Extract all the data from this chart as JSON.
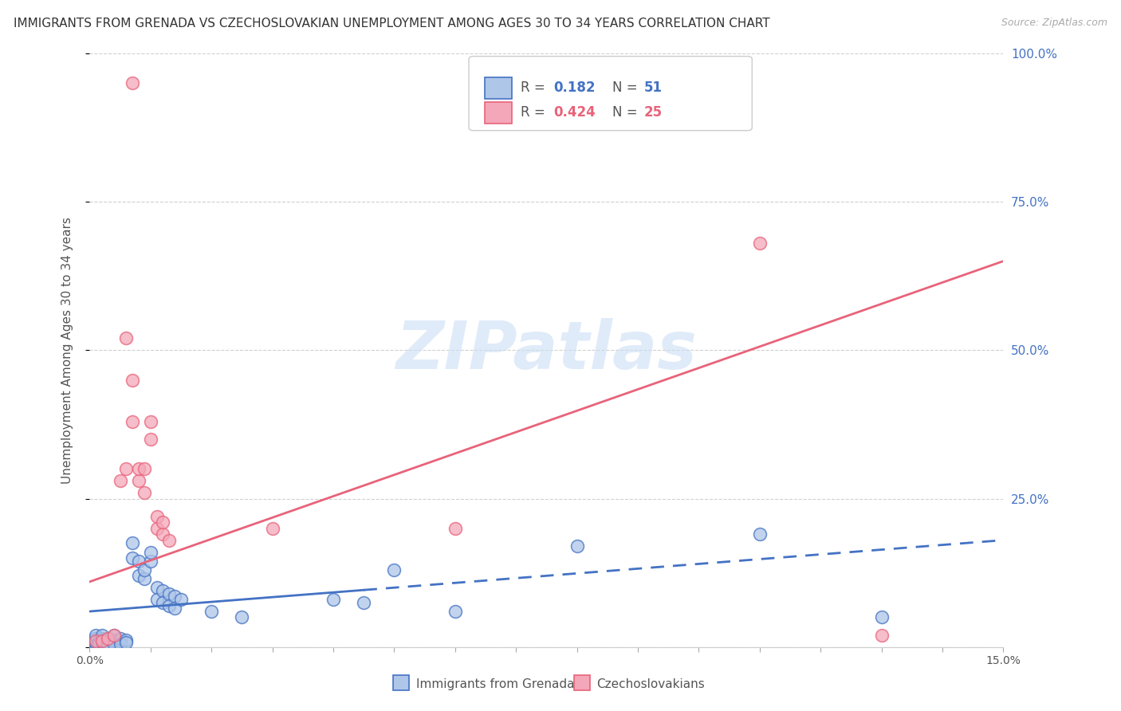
{
  "title": "IMMIGRANTS FROM GRENADA VS CZECHOSLOVAKIAN UNEMPLOYMENT AMONG AGES 30 TO 34 YEARS CORRELATION CHART",
  "source": "Source: ZipAtlas.com",
  "ylabel": "Unemployment Among Ages 30 to 34 years",
  "xmin": 0.0,
  "xmax": 0.15,
  "ymin": 0.0,
  "ymax": 1.0,
  "grenada_R": 0.182,
  "grenada_N": 51,
  "czech_R": 0.424,
  "czech_N": 25,
  "grenada_color": "#aec6e8",
  "czech_color": "#f4a7b9",
  "grenada_line_color": "#4472c4",
  "czech_line_color": "#e8637a",
  "grenada_points": [
    [
      0.0005,
      0.005
    ],
    [
      0.0005,
      0.01
    ],
    [
      0.0008,
      0.015
    ],
    [
      0.001,
      0.005
    ],
    [
      0.001,
      0.01
    ],
    [
      0.001,
      0.02
    ],
    [
      0.0012,
      0.005
    ],
    [
      0.0015,
      0.01
    ],
    [
      0.0015,
      0.005
    ],
    [
      0.002,
      0.008
    ],
    [
      0.002,
      0.015
    ],
    [
      0.002,
      0.02
    ],
    [
      0.0022,
      0.01
    ],
    [
      0.003,
      0.012
    ],
    [
      0.003,
      0.008
    ],
    [
      0.003,
      0.005
    ],
    [
      0.0032,
      0.015
    ],
    [
      0.004,
      0.01
    ],
    [
      0.004,
      0.005
    ],
    [
      0.004,
      0.02
    ],
    [
      0.005,
      0.01
    ],
    [
      0.005,
      0.015
    ],
    [
      0.005,
      0.005
    ],
    [
      0.006,
      0.012
    ],
    [
      0.006,
      0.008
    ],
    [
      0.007,
      0.15
    ],
    [
      0.007,
      0.175
    ],
    [
      0.008,
      0.12
    ],
    [
      0.008,
      0.145
    ],
    [
      0.009,
      0.115
    ],
    [
      0.009,
      0.13
    ],
    [
      0.01,
      0.145
    ],
    [
      0.01,
      0.16
    ],
    [
      0.011,
      0.1
    ],
    [
      0.011,
      0.08
    ],
    [
      0.012,
      0.095
    ],
    [
      0.012,
      0.075
    ],
    [
      0.013,
      0.09
    ],
    [
      0.013,
      0.07
    ],
    [
      0.014,
      0.085
    ],
    [
      0.014,
      0.065
    ],
    [
      0.015,
      0.08
    ],
    [
      0.02,
      0.06
    ],
    [
      0.025,
      0.05
    ],
    [
      0.04,
      0.08
    ],
    [
      0.045,
      0.075
    ],
    [
      0.05,
      0.13
    ],
    [
      0.06,
      0.06
    ],
    [
      0.08,
      0.17
    ],
    [
      0.11,
      0.19
    ],
    [
      0.13,
      0.05
    ]
  ],
  "czech_points": [
    [
      0.001,
      0.01
    ],
    [
      0.002,
      0.01
    ],
    [
      0.003,
      0.015
    ],
    [
      0.004,
      0.02
    ],
    [
      0.005,
      0.28
    ],
    [
      0.006,
      0.3
    ],
    [
      0.006,
      0.52
    ],
    [
      0.007,
      0.45
    ],
    [
      0.007,
      0.38
    ],
    [
      0.008,
      0.28
    ],
    [
      0.008,
      0.3
    ],
    [
      0.009,
      0.3
    ],
    [
      0.009,
      0.26
    ],
    [
      0.01,
      0.38
    ],
    [
      0.01,
      0.35
    ],
    [
      0.011,
      0.2
    ],
    [
      0.011,
      0.22
    ],
    [
      0.012,
      0.19
    ],
    [
      0.012,
      0.21
    ],
    [
      0.013,
      0.18
    ],
    [
      0.03,
      0.2
    ],
    [
      0.06,
      0.2
    ],
    [
      0.11,
      0.68
    ],
    [
      0.13,
      0.02
    ],
    [
      0.007,
      0.95
    ]
  ],
  "watermark": "ZIPatlas",
  "background_color": "#ffffff",
  "grid_color": "#d0d0d0",
  "title_fontsize": 11,
  "axis_label_fontsize": 11,
  "tick_fontsize": 10,
  "right_tick_color": "#4472c4",
  "grenada_line_intercept": 0.06,
  "grenada_line_slope": 0.8,
  "czech_line_intercept": 0.11,
  "czech_line_slope": 3.6
}
